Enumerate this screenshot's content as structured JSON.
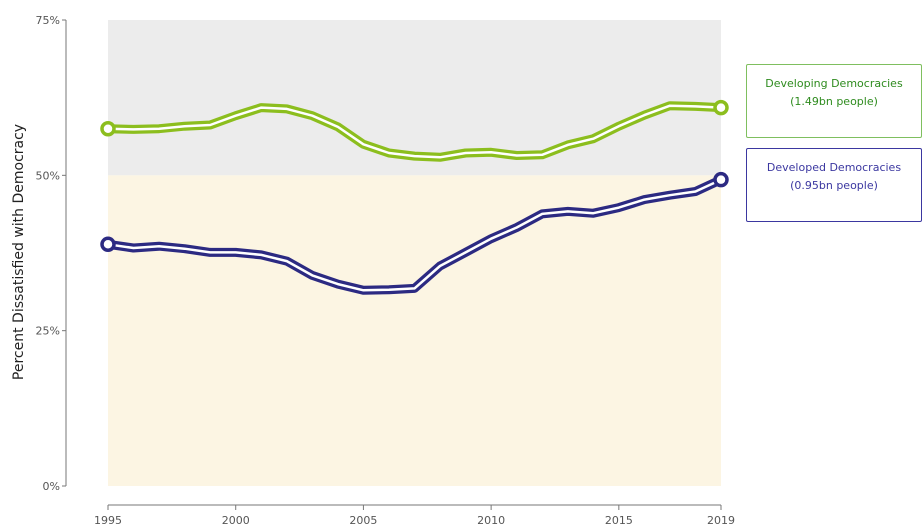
{
  "chart_data": {
    "type": "line",
    "ylabel": "Percent Dissatisfied with Democracy",
    "xlabel": "",
    "xlim": [
      1995,
      2019
    ],
    "ylim": [
      0,
      75
    ],
    "x_ticks": [
      1995,
      2000,
      2005,
      2010,
      2015,
      2019
    ],
    "y_ticks": [
      {
        "value": 0,
        "label": "0%"
      },
      {
        "value": 25,
        "label": "25%"
      },
      {
        "value": 50,
        "label": "50%"
      },
      {
        "value": 75,
        "label": "75%"
      }
    ],
    "bands": [
      {
        "from": 50,
        "to": 75,
        "color": "#ececec"
      },
      {
        "from": 0,
        "to": 50,
        "color": "#fcf5e3"
      }
    ],
    "grid": false,
    "legend_placement": "right",
    "x": [
      1995,
      1996,
      1997,
      1998,
      1999,
      2000,
      2001,
      2002,
      2003,
      2004,
      2005,
      2006,
      2007,
      2008,
      2009,
      2010,
      2011,
      2012,
      2013,
      2014,
      2015,
      2016,
      2017,
      2018,
      2019
    ],
    "series": [
      {
        "name": "Developing Democracies",
        "name_line2": "(1.49bn people)",
        "color": "#8cbe1e",
        "legend_text_color": "#2e8b1e",
        "legend_border": "#7fbf5f",
        "values": [
          57.5,
          57.4,
          57.5,
          57.9,
          58.1,
          59.6,
          60.9,
          60.7,
          59.6,
          57.8,
          55.0,
          53.6,
          53.1,
          52.9,
          53.6,
          53.7,
          53.2,
          53.3,
          54.9,
          55.9,
          57.9,
          59.7,
          61.2,
          61.1,
          60.9
        ]
      },
      {
        "name": "Developed Democracies",
        "name_line2": "(0.95bn people)",
        "color": "#2c2a82",
        "legend_text_color": "#3b37a0",
        "legend_border": "#3b37a0",
        "values": [
          38.9,
          38.3,
          38.6,
          38.2,
          37.6,
          37.6,
          37.2,
          36.2,
          33.9,
          32.5,
          31.5,
          31.6,
          31.8,
          35.4,
          37.6,
          39.8,
          41.6,
          43.8,
          44.2,
          43.9,
          44.8,
          46.1,
          46.8,
          47.4,
          49.3
        ]
      }
    ]
  }
}
